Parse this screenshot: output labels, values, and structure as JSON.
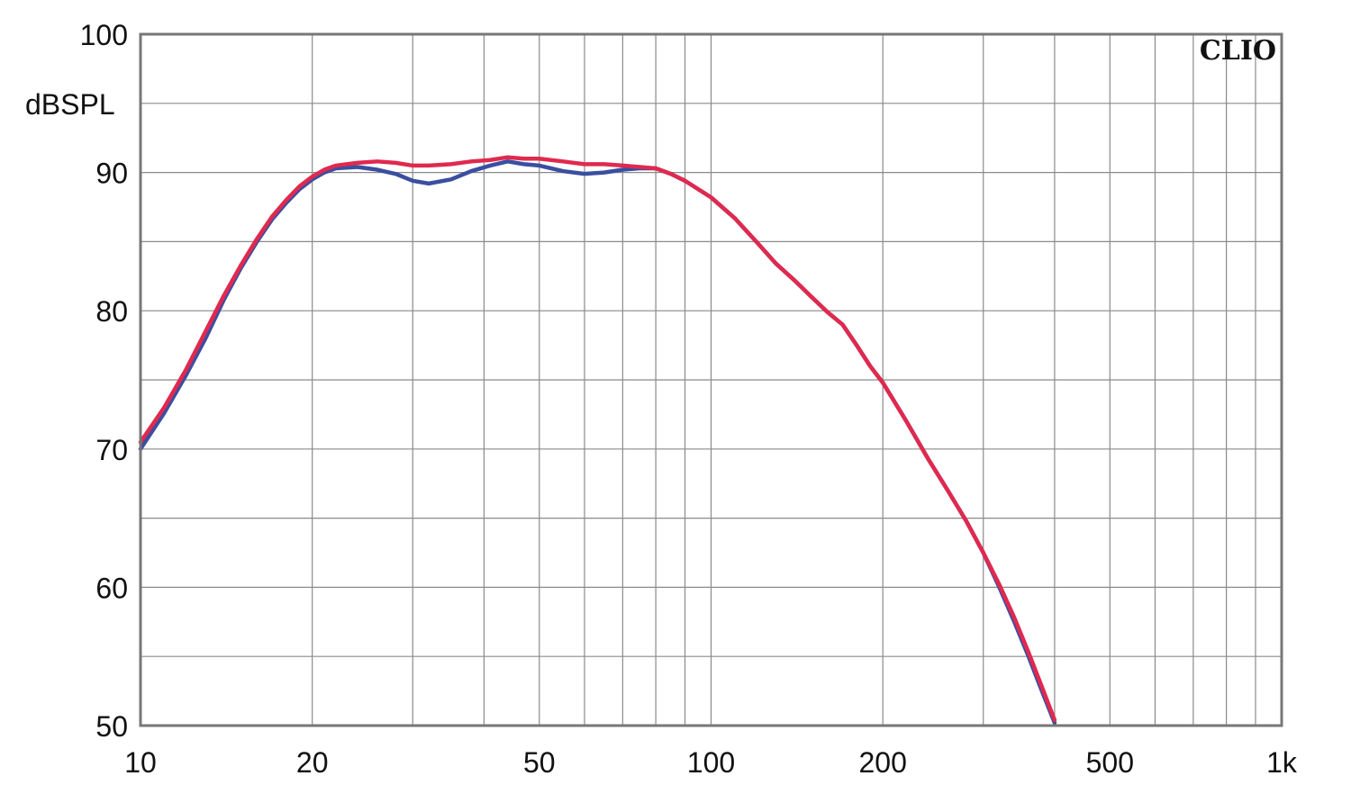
{
  "chart_data": {
    "type": "line",
    "title": "",
    "brand": "CLIO",
    "xlabel": "",
    "ylabel": "dBSPL",
    "xscale": "log",
    "xlim": [
      10,
      1000
    ],
    "ylim": [
      50,
      100
    ],
    "grid": true,
    "x_tick_labels": [
      {
        "value": 10,
        "label": "10"
      },
      {
        "value": 20,
        "label": "20"
      },
      {
        "value": 50,
        "label": "50"
      },
      {
        "value": 100,
        "label": "100"
      },
      {
        "value": 200,
        "label": "200"
      },
      {
        "value": 500,
        "label": "500"
      },
      {
        "value": 1000,
        "label": "1k"
      }
    ],
    "y_tick_labels": [
      {
        "value": 50,
        "label": "50"
      },
      {
        "value": 60,
        "label": "60"
      },
      {
        "value": 70,
        "label": "70"
      },
      {
        "value": 80,
        "label": "80"
      },
      {
        "value": 90,
        "label": "90"
      },
      {
        "value": 100,
        "label": "100"
      }
    ],
    "series": [
      {
        "color": "#3a4fa0",
        "points": [
          [
            10,
            70.0
          ],
          [
            11,
            72.6
          ],
          [
            12,
            75.3
          ],
          [
            13,
            78.0
          ],
          [
            14,
            80.8
          ],
          [
            15,
            83.1
          ],
          [
            16,
            85.0
          ],
          [
            17,
            86.6
          ],
          [
            18,
            87.8
          ],
          [
            19,
            88.8
          ],
          [
            20,
            89.5
          ],
          [
            21,
            90.0
          ],
          [
            22,
            90.3
          ],
          [
            24,
            90.4
          ],
          [
            26,
            90.2
          ],
          [
            28,
            89.9
          ],
          [
            30,
            89.4
          ],
          [
            32,
            89.2
          ],
          [
            35,
            89.5
          ],
          [
            38,
            90.1
          ],
          [
            41,
            90.5
          ],
          [
            44,
            90.8
          ],
          [
            47,
            90.6
          ],
          [
            50,
            90.5
          ],
          [
            55,
            90.1
          ],
          [
            60,
            89.9
          ],
          [
            65,
            90.0
          ],
          [
            70,
            90.2
          ],
          [
            75,
            90.3
          ],
          [
            80,
            90.3
          ],
          [
            85,
            89.9
          ],
          [
            90,
            89.4
          ],
          [
            100,
            88.2
          ],
          [
            110,
            86.7
          ],
          [
            120,
            85.0
          ],
          [
            130,
            83.4
          ],
          [
            140,
            82.2
          ],
          [
            150,
            81.0
          ],
          [
            160,
            79.9
          ],
          [
            170,
            79.0
          ],
          [
            180,
            77.5
          ],
          [
            190,
            76.0
          ],
          [
            200,
            74.8
          ],
          [
            220,
            72.0
          ],
          [
            240,
            69.3
          ],
          [
            260,
            67.0
          ],
          [
            280,
            64.8
          ],
          [
            300,
            62.5
          ],
          [
            320,
            60.0
          ],
          [
            340,
            57.5
          ],
          [
            360,
            55.0
          ],
          [
            380,
            52.5
          ],
          [
            400,
            50.2
          ]
        ]
      },
      {
        "color": "#e0294f",
        "points": [
          [
            10,
            70.5
          ],
          [
            11,
            73.0
          ],
          [
            12,
            75.7
          ],
          [
            13,
            78.5
          ],
          [
            14,
            81.1
          ],
          [
            15,
            83.3
          ],
          [
            16,
            85.2
          ],
          [
            17,
            86.8
          ],
          [
            18,
            88.0
          ],
          [
            19,
            89.0
          ],
          [
            20,
            89.7
          ],
          [
            21,
            90.2
          ],
          [
            22,
            90.5
          ],
          [
            24,
            90.7
          ],
          [
            26,
            90.8
          ],
          [
            28,
            90.7
          ],
          [
            30,
            90.5
          ],
          [
            32,
            90.5
          ],
          [
            35,
            90.6
          ],
          [
            38,
            90.8
          ],
          [
            41,
            90.9
          ],
          [
            44,
            91.1
          ],
          [
            47,
            91.0
          ],
          [
            50,
            91.0
          ],
          [
            55,
            90.8
          ],
          [
            60,
            90.6
          ],
          [
            65,
            90.6
          ],
          [
            70,
            90.5
          ],
          [
            75,
            90.4
          ],
          [
            80,
            90.3
          ],
          [
            85,
            89.9
          ],
          [
            90,
            89.4
          ],
          [
            100,
            88.2
          ],
          [
            110,
            86.7
          ],
          [
            120,
            85.0
          ],
          [
            130,
            83.4
          ],
          [
            140,
            82.2
          ],
          [
            150,
            81.0
          ],
          [
            160,
            79.9
          ],
          [
            170,
            79.0
          ],
          [
            180,
            77.5
          ],
          [
            190,
            76.0
          ],
          [
            200,
            74.8
          ],
          [
            220,
            72.0
          ],
          [
            240,
            69.3
          ],
          [
            260,
            67.0
          ],
          [
            280,
            64.8
          ],
          [
            300,
            62.5
          ],
          [
            320,
            60.2
          ],
          [
            340,
            57.8
          ],
          [
            360,
            55.3
          ],
          [
            380,
            52.8
          ],
          [
            400,
            50.4
          ]
        ]
      }
    ]
  }
}
